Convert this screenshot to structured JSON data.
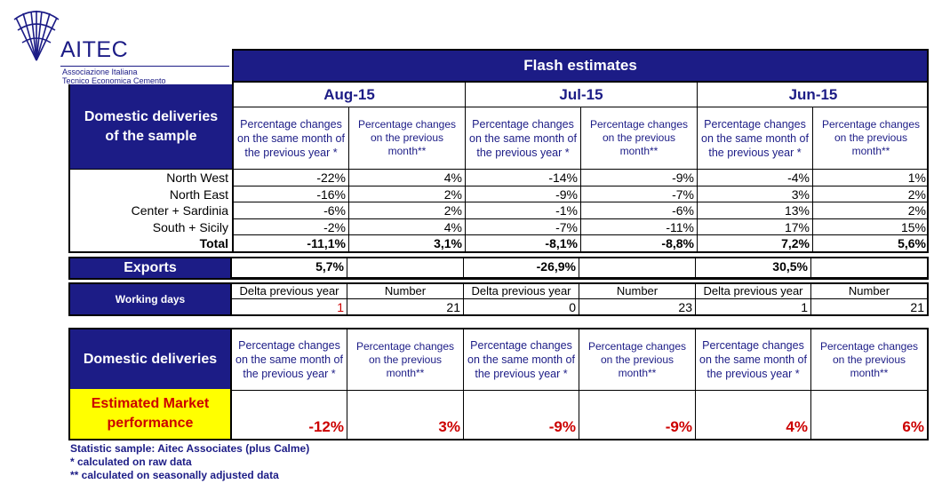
{
  "logo": {
    "name": "AITEC",
    "line1": "Associazione Italiana",
    "line2": "Tecnico Economica Cemento"
  },
  "title": "Flash estimates",
  "months": [
    "Aug-15",
    "Jul-15",
    "Jun-15"
  ],
  "col_headers": {
    "yoy": "Percentage changes on the same month of the previous year *",
    "mom": "Percentage changes on the previous month**"
  },
  "domestic_sample_label": "Domestic deliveries of the sample",
  "regions": [
    {
      "name": "North West",
      "values": [
        "-22%",
        "4%",
        "-14%",
        "-9%",
        "-4%",
        "1%"
      ]
    },
    {
      "name": "North East",
      "values": [
        "-16%",
        "2%",
        "-9%",
        "-7%",
        "3%",
        "2%"
      ]
    },
    {
      "name": "Center + Sardinia",
      "values": [
        "-6%",
        "2%",
        "-1%",
        "-6%",
        "13%",
        "2%"
      ]
    },
    {
      "name": "South + Sicily",
      "values": [
        "-2%",
        "4%",
        "-7%",
        "-11%",
        "17%",
        "15%"
      ]
    }
  ],
  "total": {
    "name": "Total",
    "values": [
      "-11,1%",
      "3,1%",
      "-8,1%",
      "-8,8%",
      "7,2%",
      "5,6%"
    ]
  },
  "exports": {
    "label": "Exports",
    "values": [
      "5,7%",
      "-26,9%",
      "30,5%"
    ]
  },
  "working_days": {
    "label": "Working days",
    "delta_label": "Delta previous year",
    "number_label": "Number",
    "values": [
      {
        "delta": "1",
        "number": "21"
      },
      {
        "delta": "0",
        "number": "23"
      },
      {
        "delta": "1",
        "number": "21"
      }
    ]
  },
  "domestic_label": "Domestic deliveries",
  "market_label": "Estimated Market performance",
  "market_values": [
    "-12%",
    "3%",
    "-9%",
    "-9%",
    "4%",
    "6%"
  ],
  "footnotes": [
    "Statistic sample: Aitec Associates (plus Calme)",
    "* calculated on raw data",
    "** calculated on seasonally adjusted data"
  ],
  "colors": {
    "navy": "#1c1c86",
    "yellow": "#ffff00",
    "red": "#cc0000"
  }
}
